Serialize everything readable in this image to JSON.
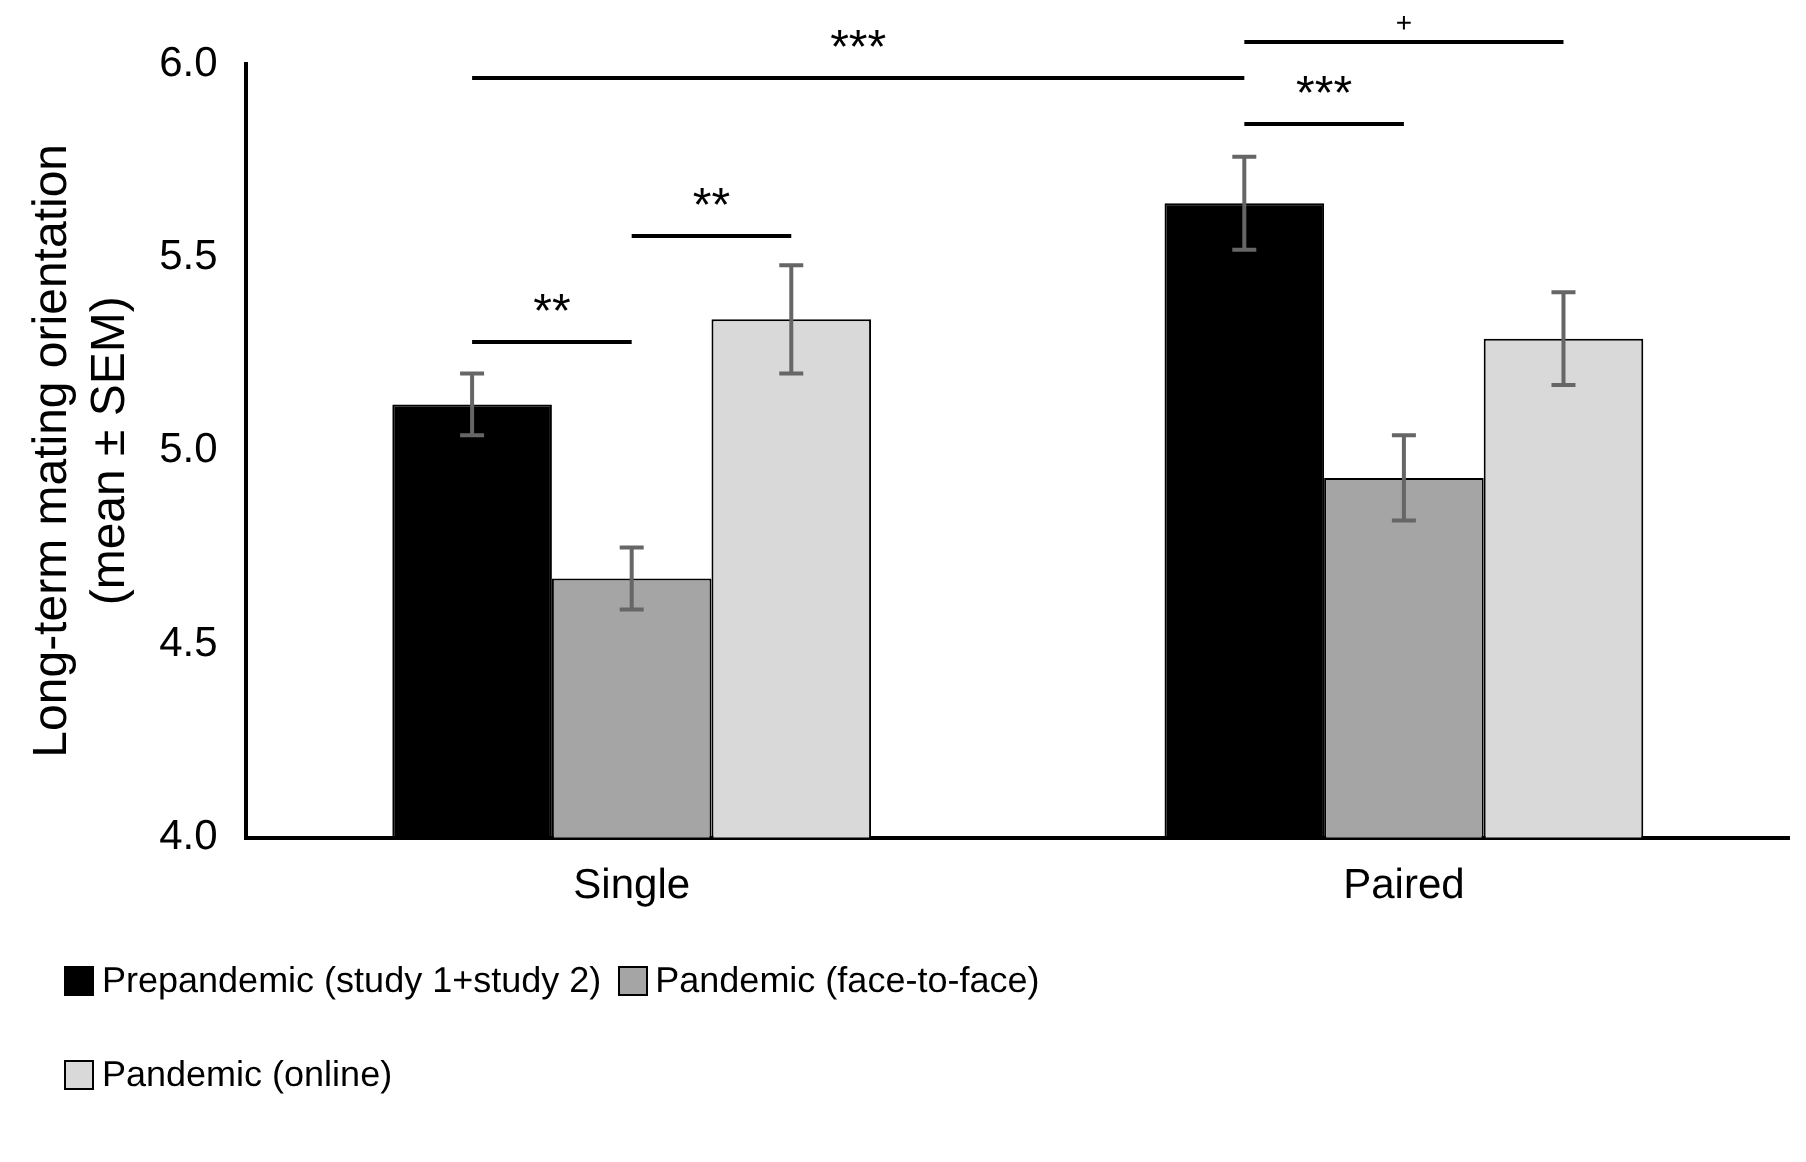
{
  "chart_data": {
    "type": "bar",
    "ylabel": "Long-term mating orientation\n(mean ± SEM)",
    "categories": [
      "Single",
      "Paired"
    ],
    "series": [
      {
        "name": "Prepandemic (study 1+study 2)",
        "color": "#000000",
        "values": [
          5.12,
          5.64
        ],
        "errors": [
          0.08,
          0.12
        ]
      },
      {
        "name": "Pandemic (face-to-face)",
        "color": "#a5a5a5",
        "values": [
          4.67,
          4.93
        ],
        "errors": [
          0.08,
          0.11
        ]
      },
      {
        "name": "Pandemic (online)",
        "color": "#d9d9d9",
        "values": [
          5.34,
          5.29
        ],
        "errors": [
          0.14,
          0.12
        ]
      }
    ],
    "ylim": [
      4.0,
      6.0
    ],
    "yticks": [
      {
        "value": 4,
        "label": "4.0"
      },
      4.5,
      {
        "value": 5,
        "label": "5.0"
      },
      5.5,
      {
        "value": 6,
        "label": "6.0"
      }
    ],
    "grid": false,
    "legend": "bottom",
    "annotations": [
      "**",
      "**",
      "***",
      "***",
      "+"
    ]
  }
}
